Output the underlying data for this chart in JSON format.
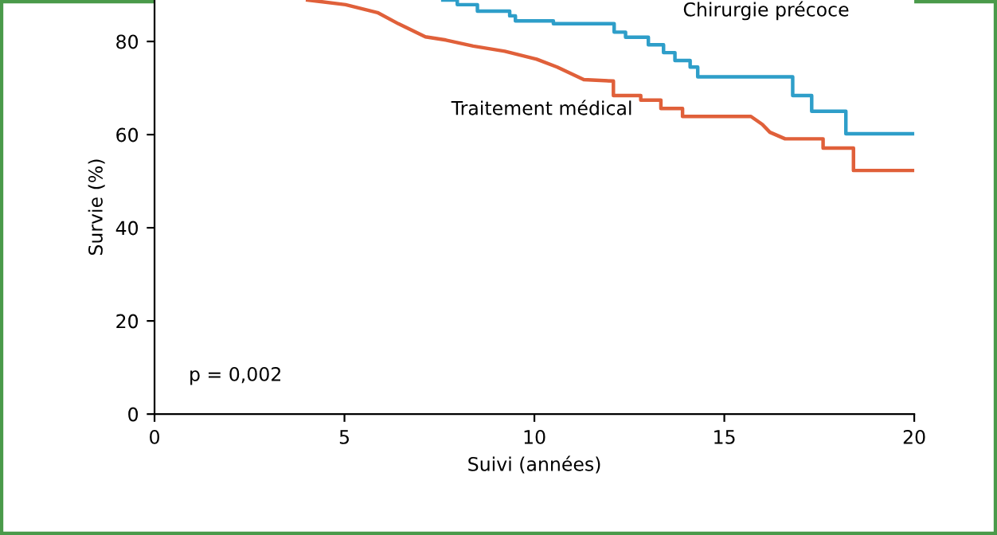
{
  "chart_data": {
    "type": "step",
    "xlabel": "Suivi (années)",
    "ylabel": "Survie (%)",
    "xlim": [
      0,
      20
    ],
    "xticks": [
      0,
      5,
      10,
      15,
      20
    ],
    "ylim": [
      0,
      88.9
    ],
    "yticks": [
      0,
      20,
      40,
      60,
      80
    ],
    "grid": false,
    "legend": false,
    "series": [
      {
        "name": "Chirurgie précoce",
        "color": "#2e9ec9",
        "x": [
          7.59,
          7.97,
          8.5,
          9.35,
          9.5,
          10.5,
          12.1,
          12.4,
          13.0,
          13.4,
          13.7,
          14.1,
          14.3,
          16.8,
          17.3,
          18.2,
          20
        ],
        "values": [
          88.9,
          87.9,
          86.5,
          85.5,
          84.4,
          83.8,
          82.0,
          80.9,
          79.3,
          77.6,
          75.9,
          74.5,
          72.4,
          68.4,
          65.0,
          60.2,
          60.2
        ]
      },
      {
        "name": "Traitement médical",
        "type": "line",
        "color": "#e0603a",
        "x": [
          4.03,
          5.03,
          5.87,
          6.42,
          7.13,
          7.67,
          8.39,
          9.22,
          10.06,
          10.6,
          11.3,
          12.08,
          12.08,
          12.8,
          12.8,
          13.33,
          13.33,
          13.9,
          13.9,
          15.7,
          16.0,
          16.2,
          16.6,
          17.6,
          17.6,
          18.4,
          18.4,
          20
        ],
        "values": [
          88.9,
          87.9,
          86.2,
          83.8,
          81.0,
          80.3,
          79.0,
          77.9,
          76.2,
          74.5,
          71.8,
          71.5,
          68.4,
          68.4,
          67.4,
          67.4,
          65.6,
          65.6,
          63.9,
          63.9,
          62.2,
          60.5,
          59.1,
          59.1,
          57.1,
          57.1,
          52.3,
          52.3
        ]
      }
    ],
    "annotations": [
      "p = 0,002"
    ]
  }
}
